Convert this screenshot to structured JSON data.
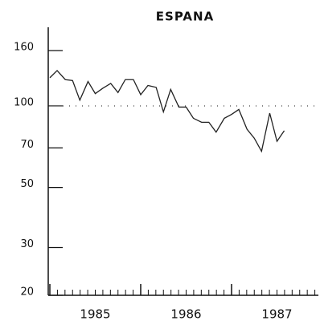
{
  "chart_data": {
    "type": "line",
    "title": "ESPANA",
    "x": [
      1985,
      1985.08,
      1985.17,
      1985.25,
      1985.33,
      1985.42,
      1985.5,
      1985.58,
      1985.67,
      1985.75,
      1985.83,
      1985.92,
      1986,
      1986.08,
      1986.17,
      1986.25,
      1986.33,
      1986.42,
      1986.5,
      1986.58,
      1986.67,
      1986.75,
      1986.83,
      1986.92,
      1987,
      1987.08,
      1987.17,
      1987.25,
      1987.33,
      1987.42,
      1987.5,
      1987.58
    ],
    "series": [
      {
        "name": "ESPANA",
        "color": "#222222",
        "values": [
          127,
          135,
          125,
          124,
          105,
          123,
          111,
          116,
          121,
          112,
          125,
          125,
          110,
          119,
          117,
          95,
          115,
          99,
          99,
          90,
          87,
          87,
          80,
          90,
          93,
          97,
          82,
          76,
          68,
          94,
          74,
          81
        ]
      }
    ],
    "xlim": [
      1985,
      1988
    ],
    "xticks": [
      1985,
      1986,
      1987,
      1988
    ],
    "year_labels": [
      1985,
      1986,
      1987
    ],
    "ylim": [
      20,
      195
    ],
    "yticks": [
      20,
      30,
      50,
      70,
      100,
      160
    ],
    "log_y": true,
    "reference_line": 100
  }
}
